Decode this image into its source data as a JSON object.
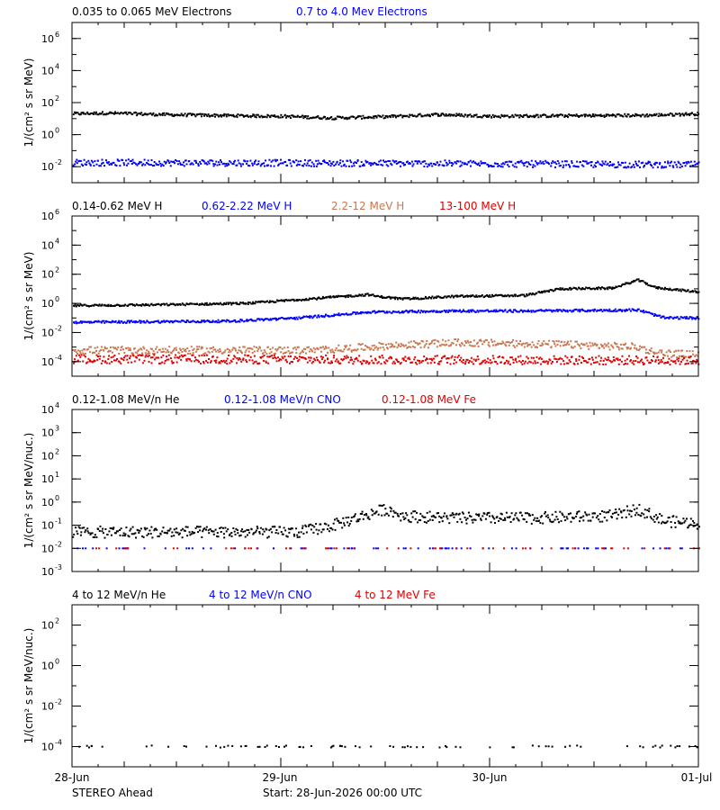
{
  "chart_data": [
    {
      "type": "scatter",
      "yscale": "log",
      "ylim": [
        0.001,
        10000000
      ],
      "ylabel": "1/(cm² s sr MeV)",
      "yticks": [
        {
          "value": 0.01,
          "base": "10",
          "exp": "-2"
        },
        {
          "value": 1,
          "base": "10",
          "exp": "0"
        },
        {
          "value": 100,
          "base": "10",
          "exp": "2"
        },
        {
          "value": 10000,
          "base": "10",
          "exp": "4"
        },
        {
          "value": 1000000,
          "base": "10",
          "exp": "6"
        }
      ],
      "series": [
        {
          "name": "0.035 to 0.065 MeV Electrons",
          "color": "#000000",
          "profile": [
            [
              0,
              20
            ],
            [
              4,
              22
            ],
            [
              12,
              17
            ],
            [
              24,
              14
            ],
            [
              30,
              11
            ],
            [
              36,
              13
            ],
            [
              42,
              18
            ],
            [
              48,
              14
            ],
            [
              56,
              15
            ],
            [
              66,
              16
            ],
            [
              72,
              20
            ]
          ],
          "scatter": 0.09
        },
        {
          "name": "0.7 to 4.0 Mev Electrons",
          "color": "#0000ff",
          "profile": [
            [
              0,
              0.018
            ],
            [
              24,
              0.017
            ],
            [
              48,
              0.015
            ],
            [
              72,
              0.013
            ]
          ],
          "scatter": 0.2
        }
      ]
    },
    {
      "type": "scatter",
      "yscale": "log",
      "ylim": [
        1e-05,
        1000000
      ],
      "ylabel": "1/(cm² s sr MeV)",
      "yticks": [
        {
          "value": 0.0001,
          "base": "10",
          "exp": "-4"
        },
        {
          "value": 0.01,
          "base": "10",
          "exp": "-2"
        },
        {
          "value": 1,
          "base": "10",
          "exp": "0"
        },
        {
          "value": 100,
          "base": "10",
          "exp": "2"
        },
        {
          "value": 10000,
          "base": "10",
          "exp": "4"
        },
        {
          "value": 1000000,
          "base": "10",
          "exp": "6"
        }
      ],
      "series": [
        {
          "name": "0.14-0.62 MeV H",
          "color": "#000000",
          "profile": [
            [
              0,
              0.7
            ],
            [
              10,
              0.8
            ],
            [
              20,
              1.0
            ],
            [
              28,
              2.2
            ],
            [
              34,
              4.0
            ],
            [
              35,
              3.0
            ],
            [
              38,
              2.0
            ],
            [
              44,
              3.0
            ],
            [
              52,
              3.5
            ],
            [
              56,
              10
            ],
            [
              62,
              11
            ],
            [
              65,
              40
            ],
            [
              67,
              12
            ],
            [
              72,
              6
            ]
          ],
          "scatter": 0.07
        },
        {
          "name": "0.62-2.22 MeV H",
          "color": "#0000ff",
          "profile": [
            [
              0,
              0.05
            ],
            [
              18,
              0.06
            ],
            [
              26,
              0.1
            ],
            [
              34,
              0.25
            ],
            [
              44,
              0.3
            ],
            [
              52,
              0.3
            ],
            [
              65,
              0.35
            ],
            [
              68,
              0.1
            ],
            [
              72,
              0.1
            ]
          ],
          "scatter": 0.08
        },
        {
          "name": "2.2-12 MeV H",
          "color": "#c87850",
          "profile": [
            [
              0,
              0.0006
            ],
            [
              28,
              0.0006
            ],
            [
              36,
              0.0012
            ],
            [
              44,
              0.002
            ],
            [
              56,
              0.0015
            ],
            [
              65,
              0.001
            ],
            [
              67,
              0.0004
            ],
            [
              72,
              0.0003
            ]
          ],
          "scatter": 0.25
        },
        {
          "name": "13-100 MeV H",
          "color": "#e00000",
          "profile": [
            [
              0,
              0.00015
            ],
            [
              72,
              0.00012
            ]
          ],
          "scatter": 0.3
        }
      ]
    },
    {
      "type": "scatter",
      "yscale": "log",
      "ylim": [
        0.001,
        10000
      ],
      "ylabel": "1/(cm² s sr MeV/nuc.)",
      "yticks": [
        {
          "value": 0.001,
          "base": "10",
          "exp": "-3"
        },
        {
          "value": 0.01,
          "base": "10",
          "exp": "-2"
        },
        {
          "value": 0.1,
          "base": "10",
          "exp": "-1"
        },
        {
          "value": 1,
          "base": "10",
          "exp": "0"
        },
        {
          "value": 10,
          "base": "10",
          "exp": "1"
        },
        {
          "value": 100,
          "base": "10",
          "exp": "2"
        },
        {
          "value": 1000,
          "base": "10",
          "exp": "3"
        },
        {
          "value": 10000,
          "base": "10",
          "exp": "4"
        }
      ],
      "series": [
        {
          "name": "0.12-1.08 MeV/n He",
          "color": "#000000",
          "profile": [
            [
              0,
              0.05
            ],
            [
              26,
              0.05
            ],
            [
              30,
              0.1
            ],
            [
              34,
              0.3
            ],
            [
              36,
              0.5
            ],
            [
              38,
              0.25
            ],
            [
              44,
              0.2
            ],
            [
              52,
              0.2
            ],
            [
              62,
              0.25
            ],
            [
              65,
              0.5
            ],
            [
              68,
              0.15
            ],
            [
              72,
              0.12
            ]
          ],
          "scatter": 0.25
        },
        {
          "name": "0.12-1.08 MeV/n CNO",
          "color": "#0000ff",
          "profile": [
            [
              0,
              0.01
            ],
            [
              72,
              0.01
            ]
          ],
          "scatter": 0.0
        },
        {
          "name": "0.12-1.08 MeV Fe",
          "color": "#e00000",
          "profile": [
            [
              0,
              0.01
            ],
            [
              72,
              0.01
            ]
          ],
          "scatter": 0.0
        }
      ]
    },
    {
      "type": "scatter",
      "yscale": "log",
      "ylim": [
        1e-05,
        1000
      ],
      "ylabel": "1/(cm² s sr MeV/nuc.)",
      "yticks": [
        {
          "value": 0.0001,
          "base": "10",
          "exp": "-4"
        },
        {
          "value": 0.01,
          "base": "10",
          "exp": "-2"
        },
        {
          "value": 1,
          "base": "10",
          "exp": "0"
        },
        {
          "value": 100,
          "base": "10",
          "exp": "2"
        }
      ],
      "series": [
        {
          "name": "4 to 12 MeV/n He",
          "color": "#000000",
          "profile": [
            [
              0,
              0.0001
            ],
            [
              72,
              0.0001
            ]
          ],
          "scatter": 0.05
        },
        {
          "name": "4 to 12 MeV/n CNO",
          "color": "#0000ff",
          "profile": [],
          "scatter": 0
        },
        {
          "name": "4 to 12 MeV Fe",
          "color": "#e00000",
          "profile": [],
          "scatter": 0
        }
      ]
    }
  ],
  "x_axis": {
    "unit": "hours",
    "range": [
      0,
      72
    ],
    "ticks": [
      {
        "value": 0,
        "label": "28-Jun"
      },
      {
        "value": 24,
        "label": "29-Jun"
      },
      {
        "value": 48,
        "label": "30-Jun"
      },
      {
        "value": 72,
        "label": "01-Jul"
      }
    ]
  },
  "footer": {
    "spacecraft": "STEREO Ahead",
    "start": "Start: 28-Jun-2026 00:00 UTC"
  }
}
